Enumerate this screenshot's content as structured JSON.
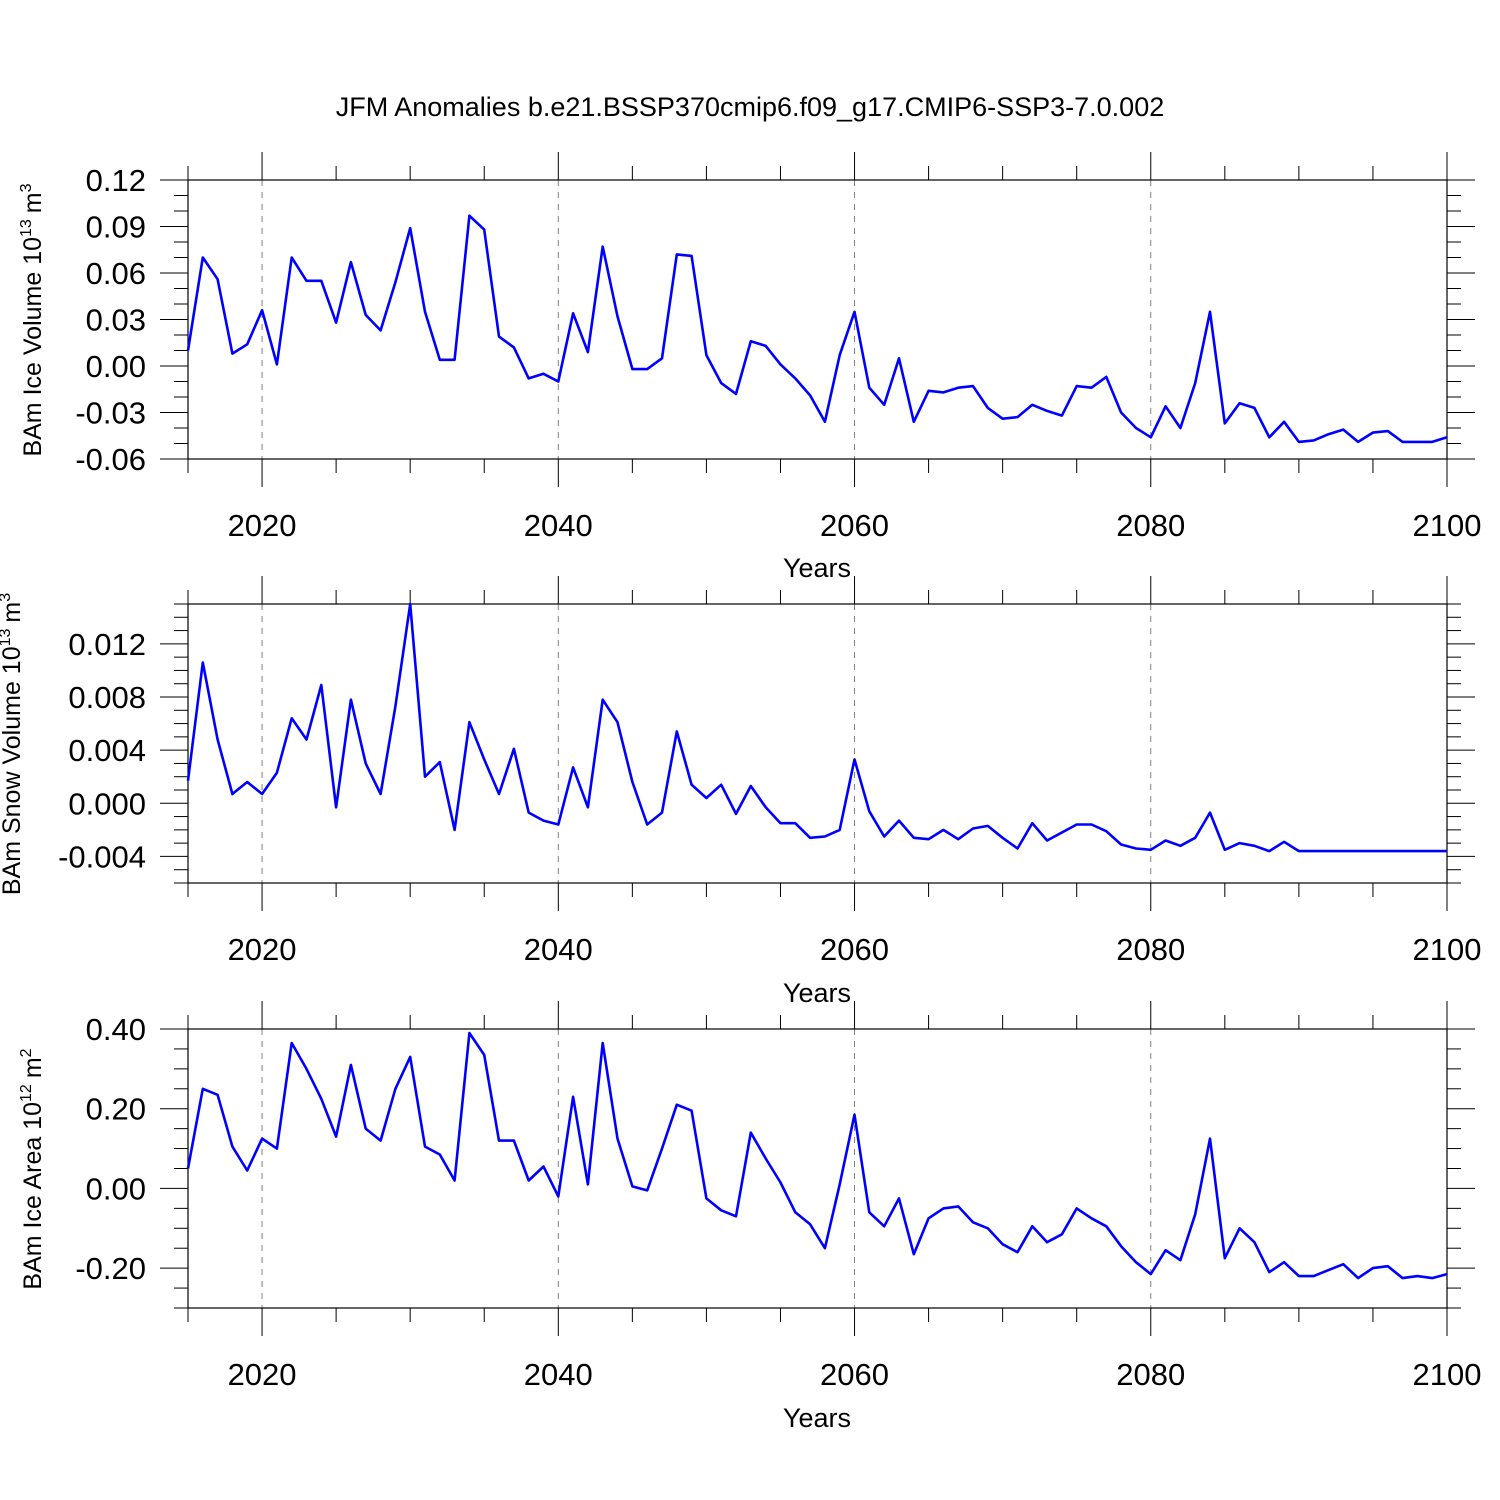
{
  "title": "JFM Anomalies b.e21.BSSP370cmip6.f09_g17.CMIP6-SSP3-7.0.002",
  "colors": {
    "line": "#0000ff",
    "axes": "#000000",
    "grid": "#808080"
  },
  "chart_data": [
    {
      "type": "line",
      "ylabel_main": "BAm Ice Volume 10",
      "ylabel_exp": "13",
      "ylabel_unit": "m",
      "ylabel_unit_exp": "3",
      "xlabel": "Years",
      "xlim": [
        2015,
        2100
      ],
      "ylim": [
        -0.06,
        0.12
      ],
      "xticks": [
        2020,
        2040,
        2060,
        2080,
        2100
      ],
      "xtick_labels": [
        "2020",
        "2040",
        "2060",
        "2080",
        "2100"
      ],
      "yticks": [
        -0.06,
        -0.03,
        0.0,
        0.03,
        0.06,
        0.09,
        0.12
      ],
      "ytick_labels": [
        "-0.06",
        "-0.03",
        "0.00",
        "0.03",
        "0.06",
        "0.09",
        "0.12"
      ],
      "ygrid_minor": 0.01,
      "x": [
        2015,
        2016,
        2017,
        2018,
        2019,
        2020,
        2021,
        2022,
        2023,
        2024,
        2025,
        2026,
        2027,
        2028,
        2029,
        2030,
        2031,
        2032,
        2033,
        2034,
        2035,
        2036,
        2037,
        2038,
        2039,
        2040,
        2041,
        2042,
        2043,
        2044,
        2045,
        2046,
        2047,
        2048,
        2049,
        2050,
        2051,
        2052,
        2053,
        2054,
        2055,
        2056,
        2057,
        2058,
        2059,
        2060,
        2061,
        2062,
        2063,
        2064,
        2065,
        2066,
        2067,
        2068,
        2069,
        2070,
        2071,
        2072,
        2073,
        2074,
        2075,
        2076,
        2077,
        2078,
        2079,
        2080,
        2081,
        2082,
        2083,
        2084,
        2085,
        2086,
        2087,
        2088,
        2089,
        2090,
        2091,
        2092,
        2093,
        2094,
        2095,
        2096,
        2097,
        2098,
        2099,
        2100
      ],
      "series": [
        {
          "values": [
            0.01,
            0.07,
            0.056,
            0.008,
            0.014,
            0.036,
            0.001,
            0.07,
            0.055,
            0.055,
            0.028,
            0.067,
            0.033,
            0.023,
            0.054,
            0.089,
            0.035,
            0.004,
            0.004,
            0.097,
            0.088,
            0.019,
            0.012,
            -0.008,
            -0.005,
            -0.01,
            0.034,
            0.009,
            0.077,
            0.032,
            -0.002,
            -0.002,
            0.005,
            0.072,
            0.071,
            0.007,
            -0.011,
            -0.018,
            0.016,
            0.013,
            0.001,
            -0.008,
            -0.019,
            -0.036,
            0.007,
            0.035,
            -0.014,
            -0.025,
            0.005,
            -0.036,
            -0.016,
            -0.017,
            -0.014,
            -0.013,
            -0.027,
            -0.034,
            -0.033,
            -0.025,
            -0.029,
            -0.032,
            -0.013,
            -0.014,
            -0.007,
            -0.03,
            -0.04,
            -0.046,
            -0.026,
            -0.04,
            -0.011,
            0.035,
            -0.037,
            -0.024,
            -0.027,
            -0.046,
            -0.036,
            -0.049,
            -0.048,
            -0.044,
            -0.041,
            -0.049,
            -0.043,
            -0.042,
            -0.049,
            -0.049,
            -0.049,
            -0.046
          ]
        }
      ]
    },
    {
      "type": "line",
      "ylabel_main": "BAm Snow Volume 10",
      "ylabel_exp": "13",
      "ylabel_unit": "m",
      "ylabel_unit_exp": "3",
      "xlabel": "Years",
      "xlim": [
        2015,
        2100
      ],
      "ylim": [
        -0.006,
        0.015
      ],
      "xticks": [
        2020,
        2040,
        2060,
        2080,
        2100
      ],
      "xtick_labels": [
        "2020",
        "2040",
        "2060",
        "2080",
        "2100"
      ],
      "yticks": [
        -0.004,
        0.0,
        0.004,
        0.008,
        0.012
      ],
      "ytick_labels": [
        "-0.004",
        "0.000",
        "0.004",
        "0.008",
        "0.012"
      ],
      "ygrid_minor": 0.001,
      "x": [
        2015,
        2016,
        2017,
        2018,
        2019,
        2020,
        2021,
        2022,
        2023,
        2024,
        2025,
        2026,
        2027,
        2028,
        2029,
        2030,
        2031,
        2032,
        2033,
        2034,
        2035,
        2036,
        2037,
        2038,
        2039,
        2040,
        2041,
        2042,
        2043,
        2044,
        2045,
        2046,
        2047,
        2048,
        2049,
        2050,
        2051,
        2052,
        2053,
        2054,
        2055,
        2056,
        2057,
        2058,
        2059,
        2060,
        2061,
        2062,
        2063,
        2064,
        2065,
        2066,
        2067,
        2068,
        2069,
        2070,
        2071,
        2072,
        2073,
        2074,
        2075,
        2076,
        2077,
        2078,
        2079,
        2080,
        2081,
        2082,
        2083,
        2084,
        2085,
        2086,
        2087,
        2088,
        2089,
        2090,
        2091,
        2092,
        2093,
        2094,
        2095,
        2096,
        2097,
        2098,
        2099,
        2100
      ],
      "series": [
        {
          "values": [
            0.0017,
            0.0106,
            0.0048,
            0.0007,
            0.0016,
            0.0007,
            0.0023,
            0.0064,
            0.0048,
            0.0089,
            -0.0003,
            0.0078,
            0.003,
            0.0007,
            0.0073,
            0.015,
            0.002,
            0.0031,
            -0.002,
            0.0061,
            0.0033,
            0.0007,
            0.0041,
            -0.0007,
            -0.0013,
            -0.0016,
            0.0027,
            -0.0003,
            0.0078,
            0.0061,
            0.0016,
            -0.0016,
            -0.0007,
            0.0054,
            0.0014,
            0.0004,
            0.0014,
            -0.0008,
            0.0013,
            -0.0003,
            -0.0015,
            -0.0015,
            -0.0026,
            -0.0025,
            -0.002,
            0.0033,
            -0.0006,
            -0.0025,
            -0.0013,
            -0.0026,
            -0.0027,
            -0.002,
            -0.0027,
            -0.0019,
            -0.0017,
            -0.0026,
            -0.0034,
            -0.0015,
            -0.0028,
            -0.0022,
            -0.0016,
            -0.0016,
            -0.0021,
            -0.0031,
            -0.0034,
            -0.0035,
            -0.0028,
            -0.0032,
            -0.0026,
            -0.0007,
            -0.0035,
            -0.003,
            -0.0032,
            -0.0036,
            -0.0029,
            -0.0036,
            -0.0036,
            -0.0036,
            -0.0036,
            -0.0036,
            -0.0036,
            -0.0036,
            -0.0036,
            -0.0036,
            -0.0036,
            -0.0036
          ]
        }
      ]
    },
    {
      "type": "line",
      "ylabel_main": "BAm Ice Area 10",
      "ylabel_exp": "12",
      "ylabel_unit": "m",
      "ylabel_unit_exp": "2",
      "xlabel": "Years",
      "xlim": [
        2015,
        2100
      ],
      "ylim": [
        -0.3,
        0.4
      ],
      "xticks": [
        2020,
        2040,
        2060,
        2080,
        2100
      ],
      "xtick_labels": [
        "2020",
        "2040",
        "2060",
        "2080",
        "2100"
      ],
      "yticks": [
        -0.2,
        0.0,
        0.2,
        0.4
      ],
      "ytick_labels": [
        "-0.20",
        "0.00",
        "0.20",
        "0.40"
      ],
      "ygrid_minor": 0.05,
      "x": [
        2015,
        2016,
        2017,
        2018,
        2019,
        2020,
        2021,
        2022,
        2023,
        2024,
        2025,
        2026,
        2027,
        2028,
        2029,
        2030,
        2031,
        2032,
        2033,
        2034,
        2035,
        2036,
        2037,
        2038,
        2039,
        2040,
        2041,
        2042,
        2043,
        2044,
        2045,
        2046,
        2047,
        2048,
        2049,
        2050,
        2051,
        2052,
        2053,
        2054,
        2055,
        2056,
        2057,
        2058,
        2059,
        2060,
        2061,
        2062,
        2063,
        2064,
        2065,
        2066,
        2067,
        2068,
        2069,
        2070,
        2071,
        2072,
        2073,
        2074,
        2075,
        2076,
        2077,
        2078,
        2079,
        2080,
        2081,
        2082,
        2083,
        2084,
        2085,
        2086,
        2087,
        2088,
        2089,
        2090,
        2091,
        2092,
        2093,
        2094,
        2095,
        2096,
        2097,
        2098,
        2099,
        2100
      ],
      "series": [
        {
          "values": [
            0.05,
            0.25,
            0.235,
            0.105,
            0.045,
            0.125,
            0.1,
            0.365,
            0.3,
            0.225,
            0.13,
            0.31,
            0.15,
            0.12,
            0.25,
            0.33,
            0.105,
            0.085,
            0.02,
            0.39,
            0.335,
            0.12,
            0.12,
            0.02,
            0.055,
            -0.02,
            0.23,
            0.01,
            0.365,
            0.125,
            0.005,
            -0.005,
            0.1,
            0.21,
            0.195,
            -0.025,
            -0.055,
            -0.07,
            0.14,
            0.075,
            0.015,
            -0.06,
            -0.09,
            -0.15,
            0.01,
            0.185,
            -0.06,
            -0.095,
            -0.025,
            -0.165,
            -0.075,
            -0.05,
            -0.045,
            -0.085,
            -0.1,
            -0.14,
            -0.16,
            -0.095,
            -0.135,
            -0.115,
            -0.05,
            -0.075,
            -0.095,
            -0.145,
            -0.185,
            -0.215,
            -0.155,
            -0.18,
            -0.065,
            0.125,
            -0.175,
            -0.1,
            -0.135,
            -0.21,
            -0.185,
            -0.22,
            -0.22,
            -0.205,
            -0.19,
            -0.225,
            -0.2,
            -0.195,
            -0.225,
            -0.22,
            -0.225,
            -0.215
          ]
        }
      ]
    }
  ]
}
